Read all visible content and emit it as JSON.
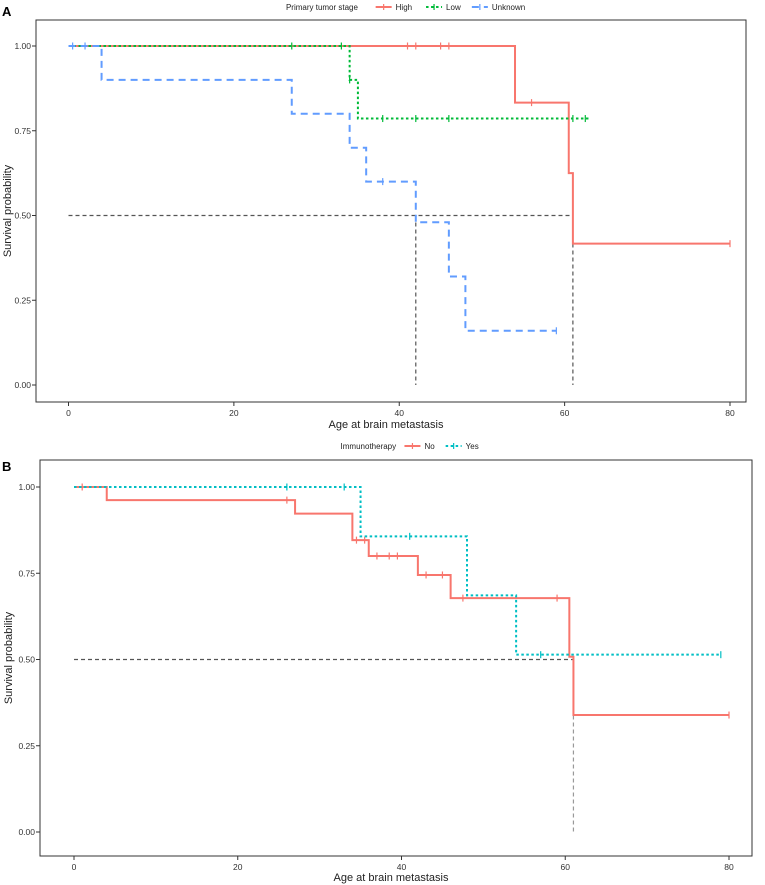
{
  "chart_data": [
    {
      "panel": "A",
      "type": "line",
      "subtype": "kaplan-meier",
      "title": "",
      "xlabel": "Age at brain metastasis",
      "ylabel": "Survival probability",
      "xlim": [
        0,
        80
      ],
      "ylim": [
        0,
        1
      ],
      "xticks": [
        "0",
        "20",
        "40",
        "60",
        "80"
      ],
      "yticks": [
        "0.00",
        "0.25",
        "0.50",
        "0.75",
        "1.00"
      ],
      "legend_title": "Primary tumor stage",
      "legend_position": "top",
      "series": [
        {
          "name": "High",
          "color": "#f8766d",
          "dash": "solid",
          "steps": [
            [
              0,
              1.0
            ],
            [
              54,
              0.833
            ],
            [
              60.5,
              0.625
            ],
            [
              61,
              0.417
            ],
            [
              80,
              0.417
            ]
          ],
          "censors": [
            [
              41,
              1.0
            ],
            [
              42,
              1.0
            ],
            [
              45,
              1.0
            ],
            [
              46,
              1.0
            ],
            [
              56,
              0.833
            ],
            [
              80,
              0.417
            ]
          ]
        },
        {
          "name": "Low",
          "color": "#00ba38",
          "dash": "dotted",
          "steps": [
            [
              0,
              1.0
            ],
            [
              34,
              0.9
            ],
            [
              35,
              0.786
            ],
            [
              63,
              0.786
            ]
          ],
          "censors": [
            [
              27,
              1.0
            ],
            [
              33,
              1.0
            ],
            [
              34,
              0.9
            ],
            [
              38,
              0.786
            ],
            [
              42,
              0.786
            ],
            [
              46,
              0.786
            ],
            [
              61,
              0.786
            ],
            [
              62.5,
              0.786
            ]
          ]
        },
        {
          "name": "Unknown",
          "color": "#619cff",
          "dash": "dashed",
          "steps": [
            [
              0,
              1.0
            ],
            [
              4,
              0.9
            ],
            [
              27,
              0.8
            ],
            [
              34,
              0.7
            ],
            [
              36,
              0.6
            ],
            [
              42,
              0.48
            ],
            [
              46,
              0.32
            ],
            [
              48,
              0.16
            ],
            [
              59,
              0.16
            ]
          ],
          "censors": [
            [
              0.5,
              1.0
            ],
            [
              2,
              1.0
            ],
            [
              38,
              0.6
            ],
            [
              59,
              0.16
            ]
          ]
        }
      ],
      "reference_lines": {
        "median_y": 0.5,
        "median_x": [
          42,
          61
        ]
      }
    },
    {
      "panel": "B",
      "type": "line",
      "subtype": "kaplan-meier",
      "title": "",
      "xlabel": "Age at brain metastasis",
      "ylabel": "Survival probability",
      "xlim": [
        0,
        80
      ],
      "ylim": [
        0,
        1
      ],
      "xticks": [
        "0",
        "20",
        "40",
        "60",
        "80"
      ],
      "yticks": [
        "0.00",
        "0.25",
        "0.50",
        "0.75",
        "1.00"
      ],
      "legend_title": "Immunotherapy",
      "legend_position": "top",
      "series": [
        {
          "name": "No",
          "color": "#f8766d",
          "dash": "solid",
          "steps": [
            [
              0,
              1.0
            ],
            [
              4,
              0.962
            ],
            [
              27,
              0.923
            ],
            [
              34,
              0.846
            ],
            [
              36,
              0.8
            ],
            [
              42,
              0.745
            ],
            [
              46,
              0.678
            ],
            [
              60.5,
              0.508
            ],
            [
              61,
              0.339
            ],
            [
              80,
              0.339
            ]
          ],
          "censors": [
            [
              1,
              1.0
            ],
            [
              26,
              0.962
            ],
            [
              34.5,
              0.846
            ],
            [
              35.5,
              0.846
            ],
            [
              37,
              0.8
            ],
            [
              38.5,
              0.8
            ],
            [
              39.5,
              0.8
            ],
            [
              43,
              0.745
            ],
            [
              45,
              0.745
            ],
            [
              47.5,
              0.678
            ],
            [
              59,
              0.678
            ],
            [
              80,
              0.339
            ]
          ]
        },
        {
          "name": "Yes",
          "color": "#00bfc4",
          "dash": "dotted",
          "steps": [
            [
              0,
              1.0
            ],
            [
              35,
              0.857
            ],
            [
              48,
              0.686
            ],
            [
              54,
              0.514
            ],
            [
              79,
              0.514
            ]
          ],
          "censors": [
            [
              26,
              1.0
            ],
            [
              33,
              1.0
            ],
            [
              41,
              0.857
            ],
            [
              57,
              0.514
            ],
            [
              79,
              0.514
            ]
          ]
        }
      ],
      "reference_lines": {
        "median_y": 0.5,
        "median_x": [
          61
        ]
      }
    }
  ]
}
